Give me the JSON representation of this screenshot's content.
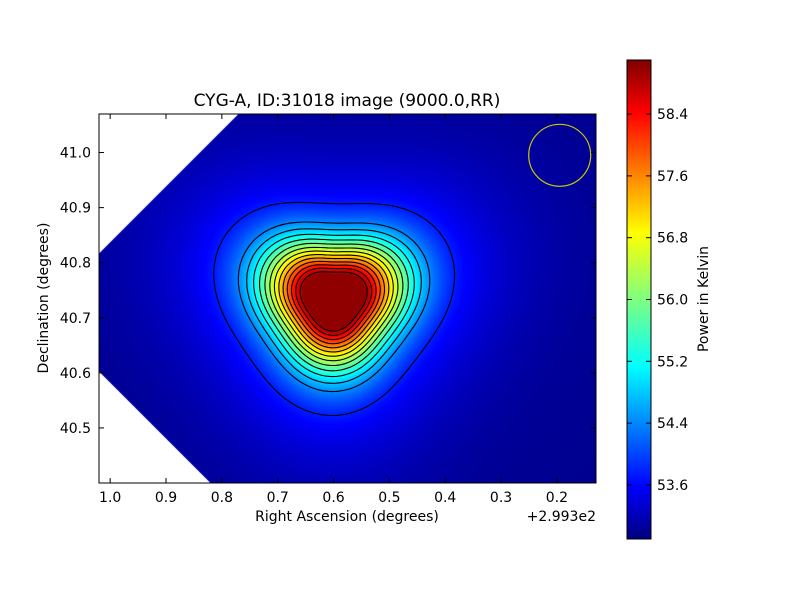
{
  "chart_data": {
    "type": "heatmap",
    "title": "CYG-A, ID:31018 image (9000.0,RR)",
    "xlabel": "Right Ascension (degrees)",
    "ylabel": "Declination (degrees)",
    "x_offset_label": "+2.993e2",
    "xlim": [
      1.02,
      0.13
    ],
    "ylim": [
      40.4,
      41.07
    ],
    "x_ticks": [
      1.0,
      0.9,
      0.8,
      0.7,
      0.6,
      0.5,
      0.4,
      0.3,
      0.2
    ],
    "x_tick_labels": [
      "1.0",
      "0.9",
      "0.8",
      "0.7",
      "0.6",
      "0.5",
      "0.4",
      "0.3",
      "0.2"
    ],
    "y_ticks": [
      40.5,
      40.6,
      40.7,
      40.8,
      40.9,
      41.0
    ],
    "y_tick_labels": [
      "40.5",
      "40.6",
      "40.7",
      "40.8",
      "40.9",
      "41.0"
    ],
    "colorbar": {
      "label": "Power in Kelvin",
      "range": [
        52.9,
        59.1
      ],
      "ticks": [
        53.6,
        54.4,
        55.2,
        56.0,
        56.8,
        57.6,
        58.4
      ],
      "tick_labels": [
        "53.6",
        "54.4",
        "55.2",
        "56.0",
        "56.8",
        "57.6",
        "58.4"
      ],
      "colormap": "jet"
    },
    "source": {
      "ra_offset": 0.6,
      "dec": 40.735,
      "peak_kelvin": 59.0,
      "background_kelvin": 53.0
    },
    "beam_circle": {
      "ra_offset": 0.195,
      "dec": 40.995,
      "color": "#c8c800"
    },
    "grid": false
  }
}
